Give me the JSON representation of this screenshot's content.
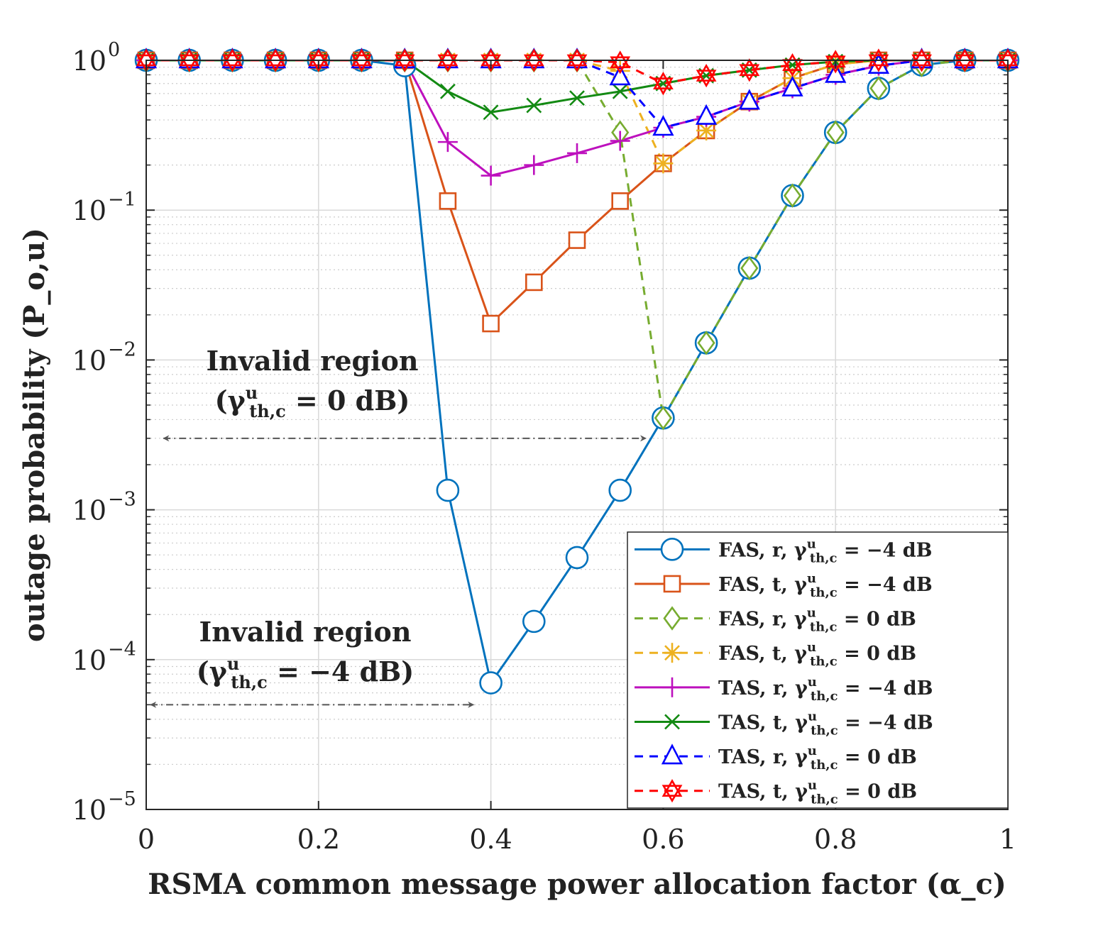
{
  "chart_data": {
    "type": "line",
    "xlabel": "RSMA common message power allocation factor (α_c)",
    "ylabel": "outage probability (P_o,u)",
    "xlim": [
      0,
      1
    ],
    "ylim": [
      1e-05,
      1
    ],
    "yscale": "log",
    "grid": true,
    "minor_grid": true,
    "legend_position": "bottom-right",
    "xticks": [
      0,
      0.2,
      0.4,
      0.6,
      0.8,
      1
    ],
    "xtick_labels": [
      "0",
      "0.2",
      "0.4",
      "0.6",
      "0.8",
      "1"
    ],
    "yticks": [
      1,
      0.1,
      0.01,
      0.001,
      0.0001,
      1e-05
    ],
    "ytick_labels": [
      {
        "base": "10",
        "exp": "0"
      },
      {
        "base": "10",
        "exp": "−1"
      },
      {
        "base": "10",
        "exp": "−2"
      },
      {
        "base": "10",
        "exp": "−3"
      },
      {
        "base": "10",
        "exp": "−4"
      },
      {
        "base": "10",
        "exp": "−5"
      }
    ],
    "x": [
      0,
      0.05,
      0.1,
      0.15,
      0.2,
      0.25,
      0.3,
      0.35,
      0.4,
      0.45,
      0.5,
      0.55,
      0.6,
      0.65,
      0.7,
      0.75,
      0.8,
      0.85,
      0.9,
      0.95,
      1.0
    ],
    "series": [
      {
        "name": "FAS, r, γ^u_th,c = −4 dB",
        "name_parts": [
          "FAS, r, ",
          "= −4 dB"
        ],
        "color": "#0072BD",
        "dash": "solid",
        "marker": "circle",
        "values": [
          1,
          1,
          1,
          1,
          1,
          1,
          0.92,
          0.00135,
          7e-05,
          0.00018,
          0.00048,
          0.00135,
          0.0041,
          0.013,
          0.041,
          0.125,
          0.33,
          0.65,
          0.93,
          1,
          1
        ]
      },
      {
        "name": "FAS, t, γ^u_th,c = −4 dB",
        "name_parts": [
          "FAS, t, ",
          "= −4 dB"
        ],
        "color": "#D95319",
        "dash": "solid",
        "marker": "square",
        "values": [
          1,
          1,
          1,
          1,
          1,
          1,
          1,
          0.115,
          0.0175,
          0.033,
          0.063,
          0.115,
          0.205,
          0.34,
          0.53,
          0.76,
          0.94,
          1,
          1,
          1,
          1
        ]
      },
      {
        "name": "FAS, r, γ^u_th,c = 0 dB",
        "name_parts": [
          "FAS, r, ",
          "= 0 dB"
        ],
        "color": "#77AC30",
        "dash": "dashed",
        "marker": "diamond",
        "values": [
          1,
          1,
          1,
          1,
          1,
          1,
          1,
          1,
          1,
          1,
          1,
          0.33,
          0.0041,
          0.013,
          0.041,
          0.125,
          0.33,
          0.65,
          0.93,
          1,
          1
        ]
      },
      {
        "name": "FAS, t, γ^u_th,c = 0 dB",
        "name_parts": [
          "FAS, t, ",
          "= 0 dB"
        ],
        "color": "#EDB120",
        "dash": "dashed",
        "marker": "asterisk",
        "values": [
          1,
          1,
          1,
          1,
          1,
          1,
          1,
          1,
          1,
          1,
          1,
          0.85,
          0.205,
          0.34,
          0.53,
          0.76,
          0.94,
          1,
          1,
          1,
          1
        ]
      },
      {
        "name": "TAS, r, γ^u_th,c = −4 dB",
        "name_parts": [
          "TAS, r, ",
          "= −4 dB"
        ],
        "color": "#BD10BD",
        "dash": "solid",
        "marker": "plus",
        "values": [
          1,
          1,
          1,
          1,
          1,
          1,
          1,
          0.285,
          0.17,
          0.2,
          0.24,
          0.29,
          0.355,
          0.42,
          0.53,
          0.65,
          0.8,
          0.92,
          1,
          1,
          1
        ]
      },
      {
        "name": "TAS, t, γ^u_th,c = −4 dB",
        "name_parts": [
          "TAS, t, ",
          "= −4 dB"
        ],
        "color": "#138A13",
        "dash": "solid",
        "marker": "x",
        "values": [
          1,
          1,
          1,
          1,
          1,
          1,
          1,
          0.62,
          0.45,
          0.5,
          0.56,
          0.62,
          0.7,
          0.79,
          0.86,
          0.93,
          0.98,
          1,
          1,
          1,
          1
        ]
      },
      {
        "name": "TAS, r, γ^u_th,c = 0 dB",
        "name_parts": [
          "TAS, r, ",
          "= 0 dB"
        ],
        "color": "#0000FF",
        "dash": "dashed",
        "marker": "triangle",
        "values": [
          1,
          1,
          1,
          1,
          1,
          1,
          1,
          1,
          1,
          1,
          1,
          0.77,
          0.355,
          0.42,
          0.53,
          0.65,
          0.8,
          0.92,
          1,
          1,
          1
        ]
      },
      {
        "name": "TAS, t, γ^u_th,c = 0 dB",
        "name_parts": [
          "TAS, t, ",
          "= 0 dB"
        ],
        "color": "#FF0000",
        "dash": "dashed",
        "marker": "hexagram",
        "values": [
          1,
          1,
          1,
          1,
          1,
          1,
          1,
          1,
          1,
          1,
          1,
          0.97,
          0.7,
          0.79,
          0.86,
          0.93,
          0.98,
          1,
          1,
          1,
          1
        ]
      }
    ],
    "annotations": [
      {
        "line1": "Invalid region",
        "line2_open": "(γ",
        "line2_close": " = 0 dB)",
        "arrow_from_x": 0.02,
        "arrow_to_x": 0.58,
        "arrow_y": 0.003
      },
      {
        "line1": "Invalid region",
        "line2_open": "(γ",
        "line2_close": " = −4 dB)",
        "arrow_from_x": 0.005,
        "arrow_to_x": 0.38,
        "arrow_y": 5e-05
      }
    ],
    "symbol_sup": "u",
    "symbol_sub": "th,c"
  }
}
